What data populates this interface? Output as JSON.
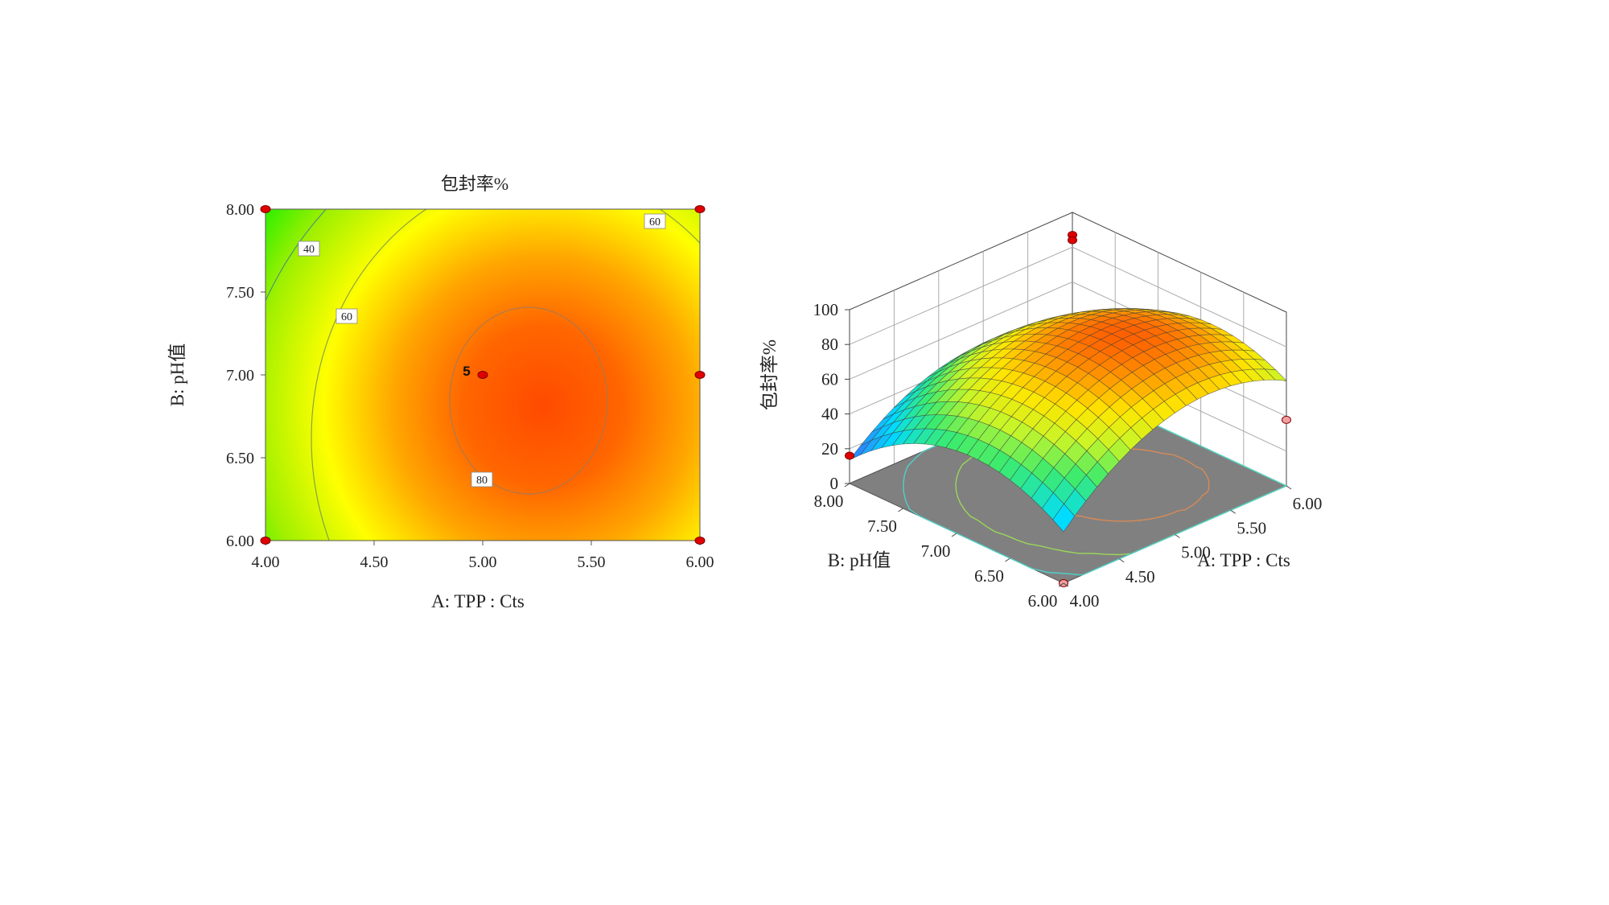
{
  "chart_data": [
    {
      "type": "heatmap",
      "subtype": "contour",
      "title": "包封率%",
      "xlabel": "A: TPP : Cts",
      "ylabel": "B: pH值",
      "xlim": [
        4.0,
        6.0
      ],
      "ylim": [
        6.0,
        8.0
      ],
      "x_ticks": [
        "4.00",
        "4.50",
        "5.00",
        "5.50",
        "6.00"
      ],
      "y_ticks": [
        "6.00",
        "6.50",
        "7.00",
        "7.50",
        "8.00"
      ],
      "contour_labels": [
        {
          "label": "40",
          "level": 40
        },
        {
          "label": "60",
          "level": 60
        },
        {
          "label": "60",
          "level": 60
        },
        {
          "label": "80",
          "level": 80
        }
      ],
      "design_points": [
        {
          "x": 4.0,
          "y": 8.0
        },
        {
          "x": 6.0,
          "y": 8.0
        },
        {
          "x": 6.0,
          "y": 7.0
        },
        {
          "x": 5.0,
          "y": 7.0,
          "label": "5"
        },
        {
          "x": 4.0,
          "y": 6.0
        },
        {
          "x": 6.0,
          "y": 6.0
        }
      ],
      "colormap": [
        "#1b3dff",
        "#00e0ff",
        "#19ee00",
        "#ffff00",
        "#ffa600",
        "#ff4a00"
      ]
    },
    {
      "type": "surface",
      "zlabel": "包封率%",
      "xlabel": "A: TPP : Cts",
      "ylabel": "B: pH值",
      "xlim": [
        4.0,
        6.0
      ],
      "ylim": [
        6.0,
        8.0
      ],
      "zlim": [
        0,
        100
      ],
      "z_ticks": [
        "0",
        "20",
        "40",
        "60",
        "80",
        "100"
      ],
      "x_ticks": [
        "4.00",
        "4.50",
        "5.00",
        "5.50",
        "6.00"
      ],
      "y_ticks": [
        "6.00",
        "6.50",
        "7.00",
        "7.50",
        "8.00"
      ],
      "floor_color": "#808080"
    }
  ]
}
